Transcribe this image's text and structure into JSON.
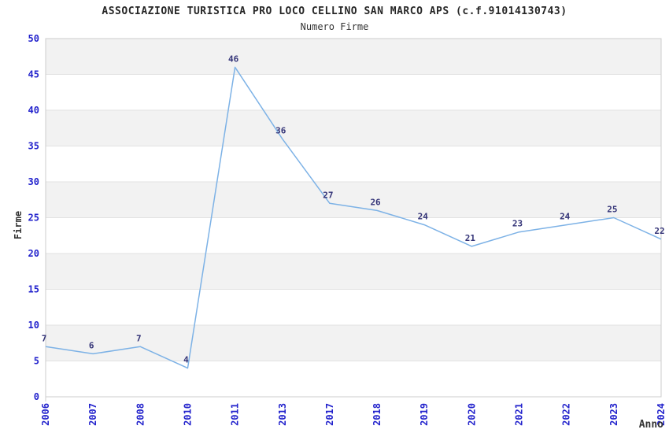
{
  "header": {
    "title": "ASSOCIAZIONE TURISTICA PRO LOCO CELLINO SAN MARCO APS (c.f.91014130743)",
    "subtitle": "Numero Firme"
  },
  "chart_data": {
    "type": "line",
    "title": "ASSOCIAZIONE TURISTICA PRO LOCO CELLINO SAN MARCO APS (c.f.91014130743)",
    "subtitle": "Numero Firme",
    "xlabel": "Anno",
    "ylabel": "Firme",
    "categories": [
      "2006",
      "2007",
      "2008",
      "2010",
      "2011",
      "2013",
      "2017",
      "2018",
      "2019",
      "2020",
      "2021",
      "2022",
      "2023",
      "2024"
    ],
    "values": [
      7,
      6,
      7,
      4,
      46,
      36,
      27,
      26,
      24,
      21,
      23,
      24,
      25,
      22
    ],
    "ylim": [
      0,
      50
    ],
    "ytick_step": 5,
    "grid": "horizontal-bands",
    "legend": "none",
    "colors": {
      "line": "#7db2e6",
      "tick_label": "#2222cc",
      "data_label": "#333377",
      "band_gray": "#f2f2f2",
      "band_white": "#ffffff",
      "grid_line": "#e2e2e2",
      "plot_border": "#cccccc",
      "axis_text": "#333333",
      "background": "#ffffff"
    }
  }
}
